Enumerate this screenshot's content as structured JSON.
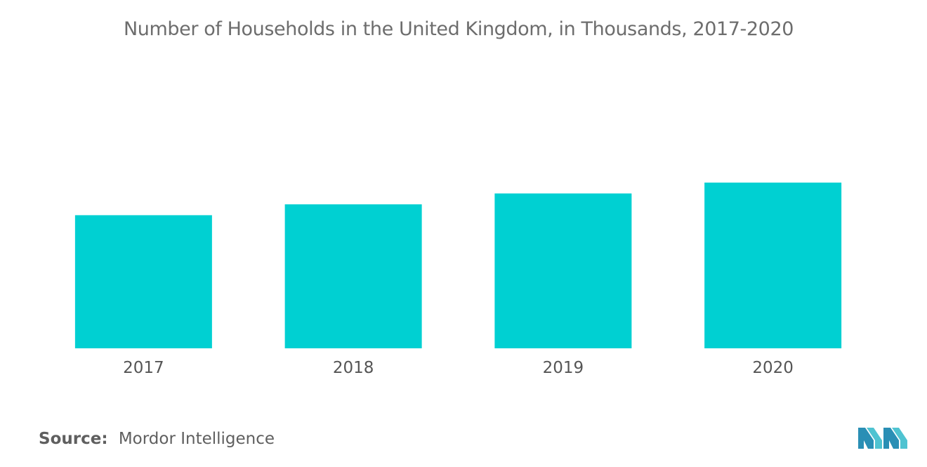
{
  "chart_data": {
    "type": "bar",
    "title": "Number of Households in the United Kingdom, in Thousands, 2017-2020",
    "categories": [
      "2017",
      "2018",
      "2019",
      "2020"
    ],
    "values": [
      27200,
      27600,
      28000,
      28400
    ],
    "xlabel": "",
    "ylabel": "",
    "ylim": [
      22300,
      28400
    ],
    "grid": false,
    "bar_color": "#00d0d2"
  },
  "source": {
    "label": "Source:",
    "text": "Mordor Intelligence"
  },
  "logo": {
    "icon": "mordor-intelligence-logo-icon",
    "colors": [
      "#2a8fb5",
      "#4fc3d1"
    ]
  }
}
